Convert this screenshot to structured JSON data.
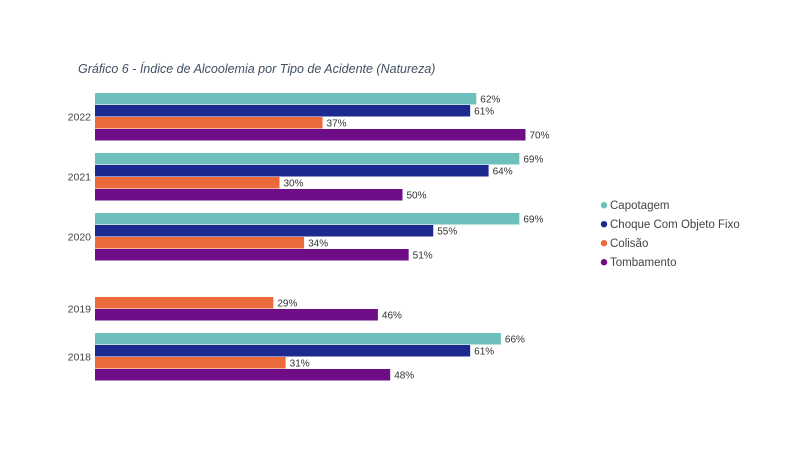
{
  "chart_data": {
    "type": "bar",
    "orientation": "horizontal",
    "title": "Gráfico 6 - Índice de Alcoolemia por Tipo de Acidente (Natureza)",
    "categories": [
      "2022",
      "2021",
      "2020",
      "2019",
      "2018"
    ],
    "series": [
      {
        "name": "Capotagem",
        "color": "#6dbfbc",
        "values": [
          62,
          69,
          69,
          null,
          66
        ],
        "labels": [
          "62%",
          "69%",
          "69%",
          "",
          "66%"
        ]
      },
      {
        "name": "Choque Com Objeto Fixo",
        "color": "#1c2a8f",
        "values": [
          61,
          64,
          55,
          null,
          61
        ],
        "labels": [
          "61%",
          "64%",
          "55%",
          "",
          "61%"
        ]
      },
      {
        "name": "Colisão",
        "color": "#ea6a3c",
        "values": [
          37,
          30,
          34,
          29,
          31
        ],
        "labels": [
          "37%",
          "30%",
          "34%",
          "29%",
          "31%"
        ]
      },
      {
        "name": "Tombamento",
        "color": "#6e0d86",
        "values": [
          70,
          50,
          51,
          46,
          48
        ],
        "labels": [
          "70%",
          "50%",
          "51%",
          "46%",
          "48%"
        ]
      }
    ],
    "unit": "%",
    "xlim": [
      0,
      100
    ],
    "grid": false,
    "legend": "right"
  }
}
